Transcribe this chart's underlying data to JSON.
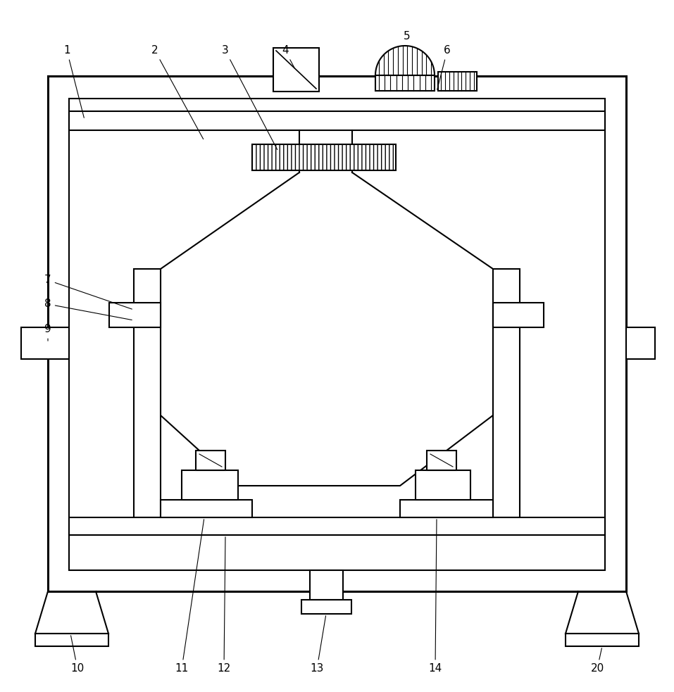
{
  "bg_color": "#ffffff",
  "line_color": "#000000",
  "lw": 1.5,
  "lw_thick": 2.2,
  "lw_thin": 0.8,
  "figsize": [
    9.57,
    9.83
  ],
  "dpi": 100,
  "font_size": 11
}
